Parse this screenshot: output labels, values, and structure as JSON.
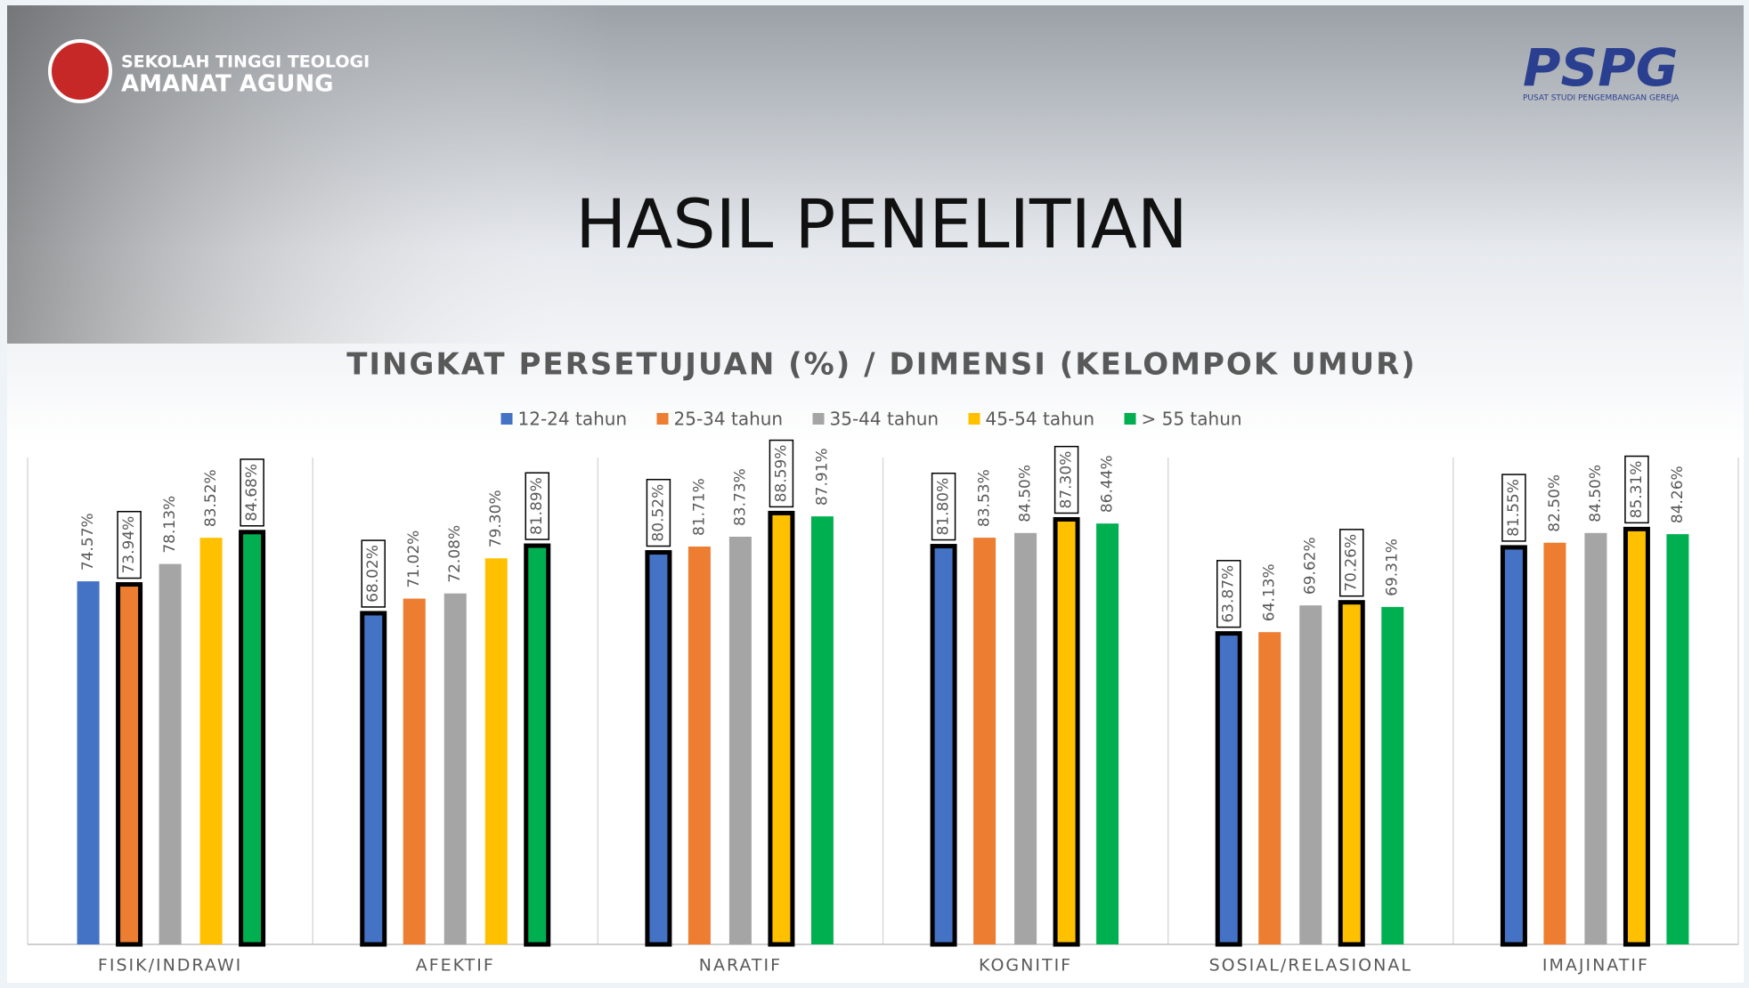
{
  "logos": {
    "school_line1": "SEKOLAH TINGGI TEOLOGI",
    "school_line2": "AMANAT AGUNG",
    "brand": "PSPG",
    "brand_sub": "PUSAT STUDI PENGEMBANGAN GEREJA"
  },
  "heading": "HASIL PENELITIAN",
  "chart_data": {
    "type": "bar",
    "title": "TINGKAT PERSETUJUAN (%) / DIMENSI (KELOMPOK UMUR)",
    "categories": [
      "FISIK/INDRAWI",
      "AFEKTIF",
      "NARATIF",
      "KOGNITIF",
      "SOSIAL/RELASIONAL",
      "IMAJINATIF"
    ],
    "ylim": [
      0,
      100
    ],
    "legend": "top",
    "series": [
      {
        "name": "12-24 tahun",
        "color": "#4472c4",
        "values": [
          74.57,
          68.02,
          80.52,
          81.8,
          63.87,
          81.55
        ],
        "value_labels": [
          "74.57%",
          "68.02%",
          "80.52%",
          "81.80%",
          "63.87%",
          "81.55%"
        ],
        "highlight": [
          false,
          true,
          true,
          true,
          true,
          true
        ]
      },
      {
        "name": "25-34 tahun",
        "color": "#ed7d31",
        "values": [
          73.94,
          71.02,
          81.71,
          83.53,
          64.13,
          82.5
        ],
        "value_labels": [
          "73.94%",
          "71.02%",
          "81.71%",
          "83.53%",
          "64.13%",
          "82.50%"
        ],
        "highlight": [
          true,
          false,
          false,
          false,
          false,
          false
        ]
      },
      {
        "name": "35-44 tahun",
        "color": "#a5a5a5",
        "values": [
          78.13,
          72.08,
          83.73,
          84.5,
          69.62,
          84.5
        ],
        "value_labels": [
          "78.13%",
          "72.08%",
          "83.73%",
          "84.50%",
          "69.62%",
          "84.50%"
        ],
        "highlight": [
          false,
          false,
          false,
          false,
          false,
          false
        ]
      },
      {
        "name": "45-54 tahun",
        "color": "#ffc000",
        "values": [
          83.52,
          79.3,
          88.59,
          87.3,
          70.26,
          85.31
        ],
        "value_labels": [
          "83.52%",
          "79.30%",
          "88.59%",
          "87.30%",
          "70.26%",
          "85.31%"
        ],
        "highlight": [
          false,
          false,
          true,
          true,
          true,
          true
        ]
      },
      {
        "name": "> 55 tahun",
        "color": "#00b050",
        "values": [
          84.68,
          81.89,
          87.91,
          86.44,
          69.31,
          84.26
        ],
        "value_labels": [
          "84.68%",
          "81.89%",
          "87.91%",
          "86.44%",
          "69.31%",
          "84.26%"
        ],
        "highlight": [
          true,
          true,
          false,
          false,
          false,
          false
        ]
      }
    ]
  }
}
